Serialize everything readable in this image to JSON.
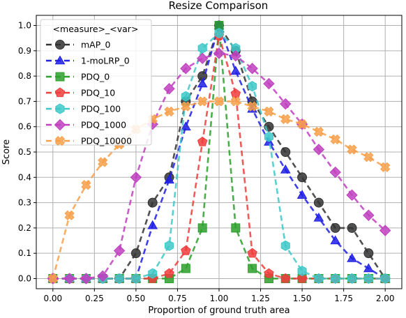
{
  "chart_data": {
    "type": "line",
    "title": "Resize Comparison",
    "xlabel": "Proportion of ground truth area",
    "ylabel": "Score",
    "xlim": [
      -0.1,
      2.1
    ],
    "ylim": [
      -0.04,
      1.04
    ],
    "x_ticks": [
      "0.00",
      "0.25",
      "0.50",
      "0.75",
      "1.00",
      "1.25",
      "1.50",
      "1.75",
      "2.00"
    ],
    "y_ticks": [
      "0.0",
      "0.1",
      "0.2",
      "0.3",
      "0.4",
      "0.5",
      "0.6",
      "0.7",
      "0.8",
      "0.9",
      "1.0"
    ],
    "grid": true,
    "legend_title": "<measure>_<var>",
    "legend_placement": "upper-left",
    "x": [
      0.0,
      0.1,
      0.2,
      0.3,
      0.4,
      0.5,
      0.6,
      0.7,
      0.8,
      0.9,
      1.0,
      1.1,
      1.2,
      1.3,
      1.4,
      1.5,
      1.6,
      1.7,
      1.8,
      1.9,
      2.0
    ],
    "series": [
      {
        "name": "mAP_0",
        "color": "#333333",
        "marker": "circle",
        "values": [
          0.0,
          0.0,
          0.0,
          0.0,
          0.0,
          0.1,
          0.3,
          0.4,
          0.7,
          0.8,
          1.0,
          0.9,
          0.7,
          0.6,
          0.5,
          0.4,
          0.3,
          0.2,
          0.2,
          0.1,
          0.0
        ]
      },
      {
        "name": "1-moLRP_0",
        "color": "#1f1fe6",
        "marker": "triangle",
        "values": [
          0.0,
          0.0,
          0.0,
          0.0,
          0.0,
          0.0,
          0.21,
          0.39,
          0.6,
          0.77,
          1.0,
          0.82,
          0.67,
          0.54,
          0.43,
          0.33,
          0.24,
          0.15,
          0.08,
          0.04,
          0.0
        ]
      },
      {
        "name": "PDQ_0",
        "color": "#2ca02c",
        "marker": "square",
        "values": [
          0.0,
          0.0,
          0.0,
          0.0,
          0.0,
          0.0,
          0.0,
          0.0,
          0.04,
          0.2,
          1.0,
          0.2,
          0.04,
          0.0,
          0.0,
          0.0,
          0.0,
          0.0,
          0.0,
          0.0,
          0.0
        ]
      },
      {
        "name": "PDQ_10",
        "color": "#f03c3c",
        "marker": "pentagon",
        "values": [
          0.0,
          0.0,
          0.0,
          0.0,
          0.0,
          0.0,
          0.0,
          0.02,
          0.11,
          0.54,
          0.96,
          0.73,
          0.1,
          0.02,
          0.0,
          0.0,
          0.0,
          0.0,
          0.0,
          0.0,
          0.0
        ]
      },
      {
        "name": "PDQ_100",
        "color": "#3ec8c8",
        "marker": "hexagon",
        "values": [
          0.0,
          0.0,
          0.0,
          0.0,
          0.0,
          0.0,
          0.02,
          0.13,
          0.72,
          0.91,
          0.97,
          0.91,
          0.76,
          0.56,
          0.13,
          0.03,
          0.0,
          0.0,
          0.0,
          0.0,
          0.0
        ]
      },
      {
        "name": "PDQ_1000",
        "color": "#bf3fbf",
        "marker": "diamond",
        "values": [
          0.0,
          0.0,
          0.0,
          0.01,
          0.11,
          0.4,
          0.61,
          0.75,
          0.83,
          0.87,
          0.89,
          0.88,
          0.83,
          0.77,
          0.69,
          0.61,
          0.51,
          0.42,
          0.33,
          0.25,
          0.19
        ]
      },
      {
        "name": "PDQ_10000",
        "color": "#f7a04a",
        "marker": "cross",
        "values": [
          0.0,
          0.25,
          0.37,
          0.46,
          0.53,
          0.59,
          0.63,
          0.66,
          0.68,
          0.7,
          0.7,
          0.7,
          0.68,
          0.66,
          0.63,
          0.61,
          0.58,
          0.55,
          0.51,
          0.48,
          0.44
        ]
      }
    ]
  }
}
